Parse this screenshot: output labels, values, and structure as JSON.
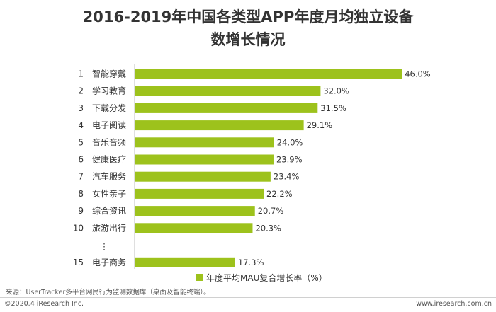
{
  "chart_data": {
    "type": "bar",
    "orientation": "horizontal",
    "title_lines": [
      "2016-2019年中国各类型APP年度月均独立设备",
      "数增长情况"
    ],
    "ranks": [
      "1",
      "2",
      "3",
      "4",
      "5",
      "6",
      "7",
      "8",
      "9",
      "10",
      "15"
    ],
    "categories": [
      "智能穿戴",
      "学习教育",
      "下载分发",
      "电子阅读",
      "音乐音频",
      "健康医疗",
      "汽车服务",
      "女性亲子",
      "综合资讯",
      "旅游出行",
      "电子商务"
    ],
    "values": [
      46.0,
      32.0,
      31.5,
      29.1,
      24.0,
      23.9,
      23.4,
      22.2,
      20.7,
      20.3,
      17.3
    ],
    "value_labels": [
      "46.0%",
      "32.0%",
      "31.5%",
      "29.1%",
      "24.0%",
      "23.9%",
      "23.4%",
      "22.2%",
      "20.7%",
      "20.3%",
      "17.3%"
    ],
    "gap_marker": "⋮",
    "series": [
      {
        "name": "年度平均MAU复合增长率（%）",
        "values": [
          46.0,
          32.0,
          31.5,
          29.1,
          24.0,
          23.9,
          23.4,
          22.2,
          20.7,
          20.3,
          17.3
        ]
      }
    ],
    "bar_color": "#9dc21c",
    "legend_position": "bottom-center",
    "grid": false
  },
  "footer": {
    "source": "来源：UserTracker多平台网民行为监测数据库（桌面及智能终端）。",
    "copyright": "©2020.4 iResearch Inc.",
    "website": "www.iresearch.com.cn"
  }
}
